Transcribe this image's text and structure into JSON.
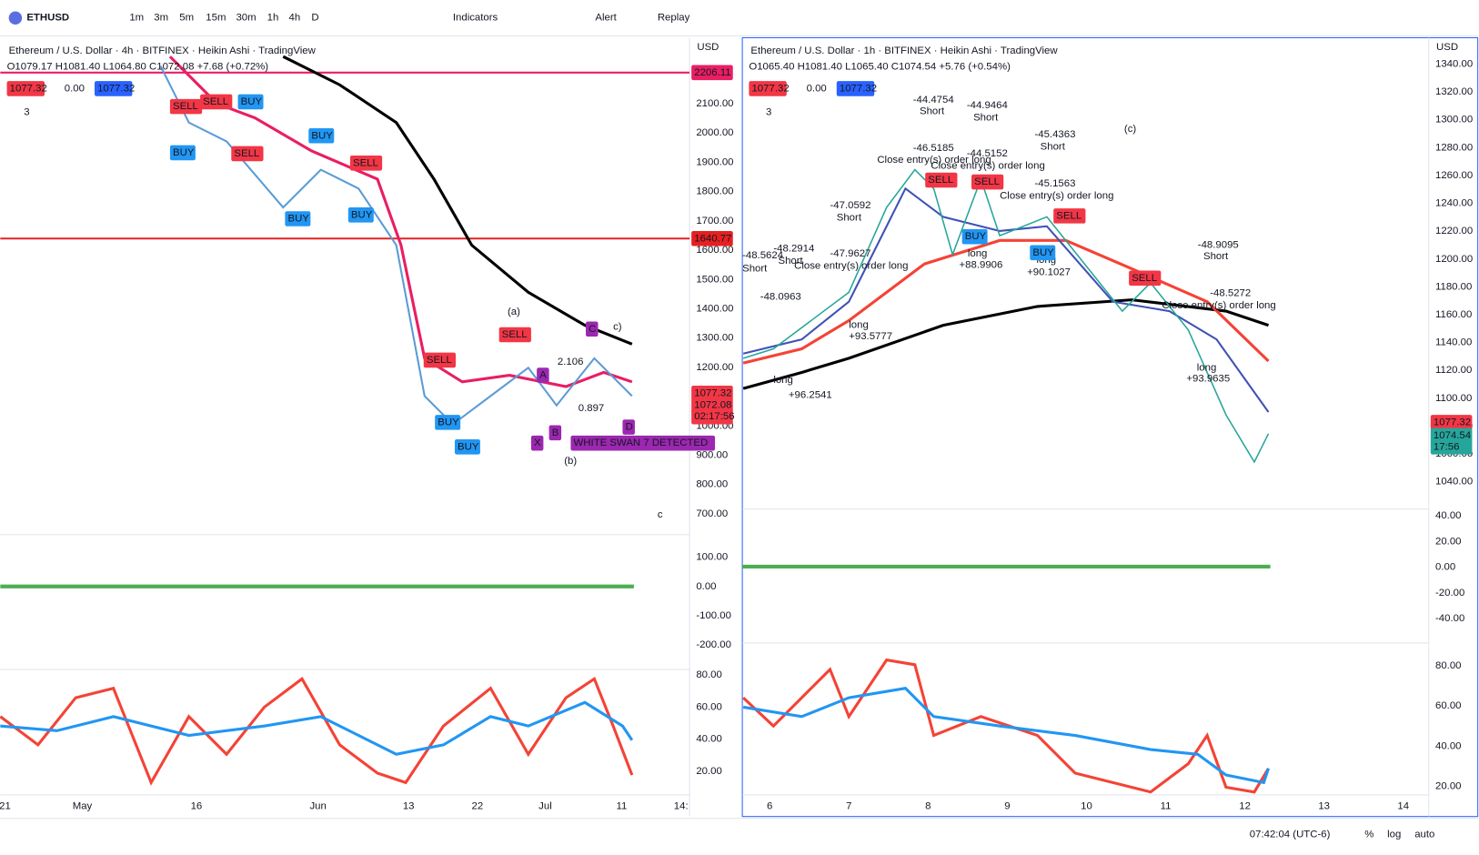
{
  "toolbar": {
    "symbol": "ETHUSD",
    "intervals": [
      "1m",
      "3m",
      "5m",
      "15m",
      "30m",
      "1h",
      "4h",
      "D"
    ],
    "indicators": "Indicators",
    "alert": "Alert",
    "replay": "Replay"
  },
  "left": {
    "title": "Ethereum / U.S. Dollar · 4h · BITFINEX · Heikin Ashi · TradingView",
    "ohlc": "O1079.17 H1081.40 L1064.80 C1072.08 +7.68 (+0.72%)",
    "bid": "1077.32",
    "spread": "0.00",
    "ask": "1077.32",
    "count": "3",
    "currency": "USD",
    "yticks": [
      "2100.00",
      "2000.00",
      "1900.00",
      "1800.00",
      "1700.00",
      "1600.00",
      "1500.00",
      "1400.00",
      "1300.00",
      "1200.00",
      "1100.00",
      "1000.00",
      "900.00",
      "800.00",
      "700.00"
    ],
    "osc_ticks": [
      "100.00",
      "0.00",
      "-100.00",
      "-200.00"
    ],
    "rsi_ticks": [
      "80.00",
      "60.00",
      "40.00",
      "20.00"
    ],
    "xticks": [
      "21",
      "May",
      "16",
      "Jun",
      "13",
      "22",
      "Jul",
      "11",
      "14:"
    ],
    "tags": [
      "2206.11",
      "1640.77",
      "1077.32",
      "1072.08",
      "02:17:56"
    ],
    "annotations": [
      "SELL",
      "SELL",
      "BUY",
      "BUY",
      "SELL",
      "BUY",
      "BUY",
      "SELL",
      "BUY",
      "SELL",
      "BUY",
      "BUY",
      "(a)",
      "SELL",
      "c)",
      "C",
      "A",
      "X",
      "B",
      "D",
      "(b)",
      "c",
      "2.106",
      "0.897",
      "WHITE SWAN 7 DETECTED"
    ]
  },
  "right": {
    "title": "Ethereum / U.S. Dollar · 1h · BITFINEX · Heikin Ashi · TradingView",
    "ohlc": "O1065.40 H1081.40 L1065.40 C1074.54 +5.76 (+0.54%)",
    "bid": "1077.32",
    "spread": "0.00",
    "ask": "1077.32",
    "count": "3",
    "currency": "USD",
    "yticks": [
      "1340.00",
      "1320.00",
      "1300.00",
      "1280.00",
      "1260.00",
      "1240.00",
      "1220.00",
      "1200.00",
      "1180.00",
      "1160.00",
      "1140.00",
      "1120.00",
      "1100.00",
      "1080.00",
      "1060.00",
      "1040.00"
    ],
    "osc_ticks": [
      "40.00",
      "20.00",
      "0.00",
      "-20.00",
      "-40.00"
    ],
    "rsi_ticks": [
      "80.00",
      "60.00",
      "40.00",
      "20.00"
    ],
    "xticks": [
      "6",
      "7",
      "8",
      "9",
      "10",
      "11",
      "12",
      "13",
      "14"
    ],
    "tags": [
      "1077.32",
      "1074.54",
      "17:56"
    ],
    "annotations": [
      "-44.4754",
      "Short",
      "-44.9464",
      "Short",
      "-46.5185",
      "Close entry(s) order long",
      "-44.5152",
      "Close entry(s) order long",
      "-45.4363",
      "Short",
      "-45.1563",
      "Close entry(s) order long",
      "(c)",
      "-47.0592",
      "Short",
      "-47.9627",
      "Close entry(s) order long",
      "-48.2914",
      "Short",
      "-48.5624",
      "Short",
      "-48.0963",
      "long",
      "+93.5777",
      "long",
      "+96.2541",
      "long",
      "+88.9906",
      "long",
      "+90.1027",
      "-48.9095",
      "Short",
      "-48.5272",
      "Close entry(s) order long",
      "long",
      "+93.9635",
      "SELL",
      "SELL",
      "SELL",
      "SELL",
      "BUY",
      "BUY"
    ]
  },
  "status": {
    "time": "07:42:04 (UTC-6)",
    "percent": "%",
    "log": "log",
    "auto": "auto"
  }
}
